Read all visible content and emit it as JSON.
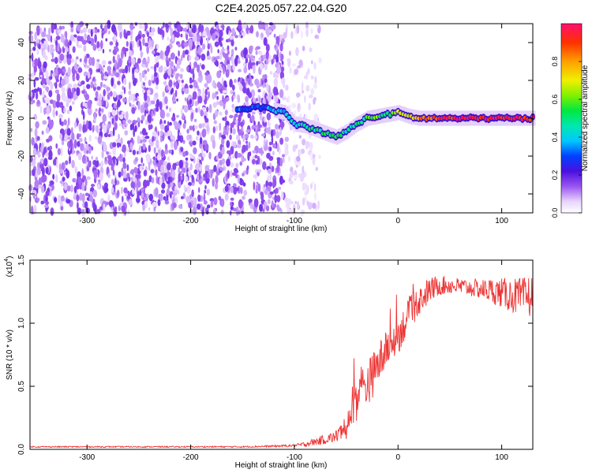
{
  "title": "C2E4.2025.057.22.04.G20",
  "chart_data": [
    {
      "type": "heatmap",
      "panel": "top",
      "xlabel": "Height of straight line (km)",
      "ylabel": "Frequency (Hz)",
      "xlim": [
        -355,
        130
      ],
      "ylim": [
        -50,
        50
      ],
      "xticks": [
        -300,
        -200,
        -100,
        0,
        100
      ],
      "yticks": [
        -40,
        -20,
        0,
        20,
        40
      ],
      "colorbar": {
        "label": "Normalized spectral amplitude",
        "range": [
          0,
          1
        ],
        "ticks": [
          "0.0",
          "0.2",
          "0.4",
          "0.6",
          "0.8"
        ],
        "tick_values": [
          0,
          0.2,
          0.4,
          0.6,
          0.8
        ]
      },
      "noise_region_x": [
        -355,
        -110
      ],
      "signal_track": {
        "x": [
          -155,
          -140,
          -125,
          -110,
          -100,
          -90,
          -80,
          -70,
          -60,
          -50,
          -40,
          -30,
          -20,
          -10,
          0,
          10,
          20,
          40,
          60,
          80,
          100,
          120,
          130
        ],
        "freq": [
          4,
          6,
          5,
          3,
          -3,
          -4,
          -6,
          -8,
          -10,
          -7,
          -3,
          0,
          1,
          2,
          3,
          1,
          0,
          0,
          0,
          0,
          0,
          0,
          0
        ],
        "amplitude": [
          0.35,
          0.3,
          0.35,
          0.4,
          0.45,
          0.5,
          0.5,
          0.5,
          0.55,
          0.45,
          0.5,
          0.55,
          0.6,
          0.5,
          0.65,
          0.7,
          0.8,
          0.9,
          0.95,
          0.95,
          0.95,
          0.95,
          0.9
        ]
      }
    },
    {
      "type": "line",
      "panel": "bottom",
      "xlabel": "Height of straight line (km)",
      "ylabel": "SNR (10 * v/v)",
      "ylabel_multiplier": "(x10",
      "ylabel_exponent": "4",
      "ylabel_close": ")",
      "xlim": [
        -355,
        130
      ],
      "ylim": [
        0,
        1.5
      ],
      "xticks": [
        -300,
        -200,
        -100,
        0,
        100
      ],
      "yticks": [
        0.0,
        0.5,
        1.0,
        1.5
      ],
      "ytick_labels": [
        "0.0",
        "0.5",
        "1.0",
        "1.5"
      ],
      "series": [
        {
          "name": "SNR",
          "color": "#ee3333",
          "x": [
            -355,
            -300,
            -250,
            -200,
            -150,
            -120,
            -100,
            -90,
            -80,
            -70,
            -60,
            -50,
            -45,
            -40,
            -35,
            -30,
            -25,
            -20,
            -15,
            -10,
            -5,
            0,
            5,
            10,
            15,
            20,
            25,
            30,
            40,
            50,
            60,
            70,
            80,
            90,
            100,
            110,
            120,
            130
          ],
          "values": [
            0.02,
            0.02,
            0.02,
            0.02,
            0.02,
            0.025,
            0.03,
            0.04,
            0.06,
            0.08,
            0.1,
            0.18,
            0.3,
            0.42,
            0.48,
            0.52,
            0.58,
            0.66,
            0.74,
            0.8,
            0.86,
            0.9,
            0.98,
            1.05,
            1.12,
            1.18,
            1.22,
            1.26,
            1.3,
            1.3,
            1.29,
            1.28,
            1.27,
            1.26,
            1.24,
            1.22,
            1.2,
            1.22
          ],
          "noise": [
            0.005,
            0.005,
            0.005,
            0.005,
            0.006,
            0.008,
            0.01,
            0.02,
            0.03,
            0.04,
            0.05,
            0.1,
            0.2,
            0.2,
            0.18,
            0.18,
            0.18,
            0.17,
            0.16,
            0.15,
            0.15,
            0.15,
            0.14,
            0.14,
            0.13,
            0.12,
            0.12,
            0.1,
            0.08,
            0.07,
            0.07,
            0.07,
            0.08,
            0.1,
            0.12,
            0.14,
            0.16,
            0.18
          ]
        }
      ]
    }
  ]
}
